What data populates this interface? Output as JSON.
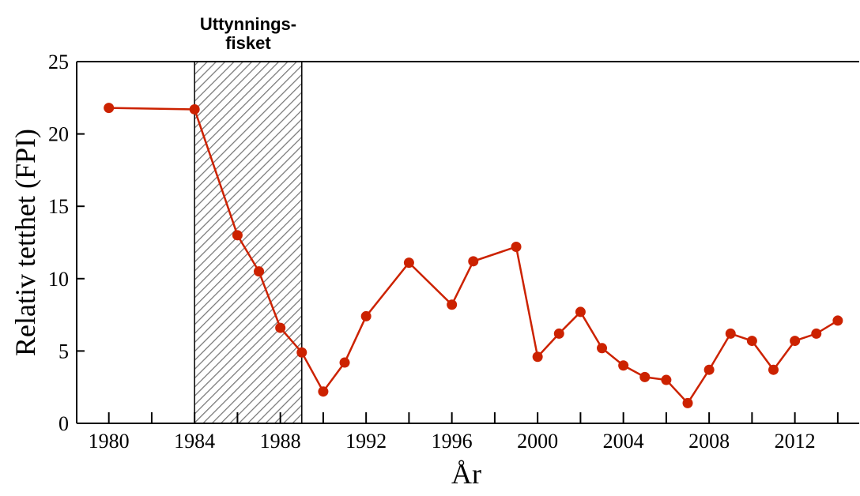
{
  "chart_data": {
    "type": "line",
    "xlabel": "År",
    "ylabel": "Relativ tetthet (FPI)",
    "x": [
      1980,
      1984,
      1986,
      1987,
      1988,
      1989,
      1990,
      1991,
      1992,
      1994,
      1996,
      1997,
      1999,
      2000,
      2001,
      2002,
      2003,
      2004,
      2005,
      2006,
      2007,
      2008,
      2009,
      2010,
      2011,
      2012,
      2013,
      2014
    ],
    "series": [
      {
        "color": "#cc2200",
        "values": [
          21.8,
          21.7,
          13.0,
          10.5,
          6.6,
          4.9,
          2.2,
          4.2,
          7.4,
          11.1,
          8.2,
          11.2,
          12.2,
          4.6,
          6.2,
          7.7,
          5.2,
          4.0,
          3.2,
          3.0,
          1.4,
          3.7,
          6.2,
          5.7,
          3.7,
          5.7,
          6.2,
          7.1
        ]
      }
    ],
    "xlim": [
      1978.5,
      2015
    ],
    "ylim": [
      0,
      25
    ],
    "xticks": [
      1980,
      1984,
      1988,
      1992,
      1996,
      2000,
      2004,
      2008,
      2012
    ],
    "xminorticks": [
      1982,
      1986,
      1990,
      1994,
      1998,
      2002,
      2006,
      2010,
      2014
    ],
    "yticks": [
      0,
      5,
      10,
      15,
      20,
      25
    ],
    "shaded_region": {
      "xmin": 1984,
      "xmax": 1989,
      "label_lines": [
        "Uttynnings-",
        "fisket"
      ]
    }
  }
}
